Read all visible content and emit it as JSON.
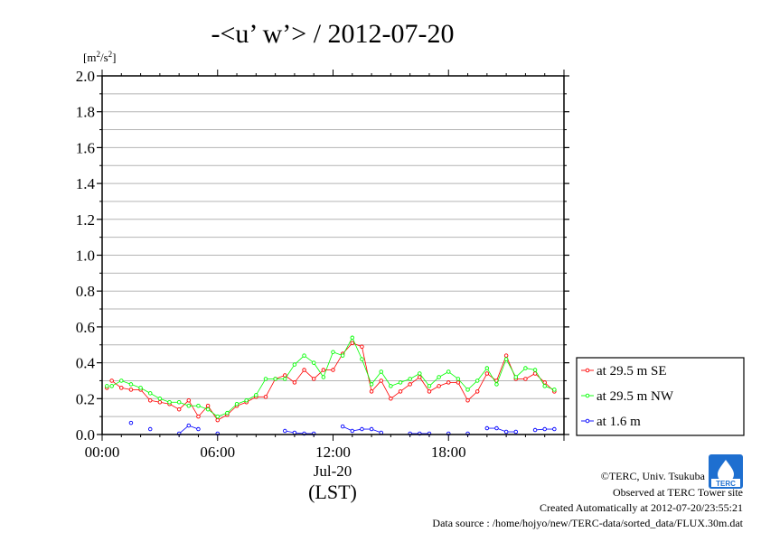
{
  "chart_data": {
    "type": "line",
    "title": "-<u’ w’> / 2012-07-20",
    "unit_base": "[m",
    "unit_sup1": "2",
    "unit_mid": "/s",
    "unit_sup2": "2",
    "unit_end": "]",
    "xlabel_date": "Jul-20",
    "xlabel_tz": "(LST)",
    "xlim": [
      0,
      24
    ],
    "ylim": [
      0,
      2.0
    ],
    "x_ticks": [
      {
        "x": 0,
        "label": "00:00"
      },
      {
        "x": 6,
        "label": "06:00"
      },
      {
        "x": 12,
        "label": "12:00"
      },
      {
        "x": 18,
        "label": "18:00"
      }
    ],
    "y_ticks": [
      {
        "y": 0.0,
        "label": "0.0"
      },
      {
        "y": 0.2,
        "label": "0.2"
      },
      {
        "y": 0.4,
        "label": "0.4"
      },
      {
        "y": 0.6,
        "label": "0.6"
      },
      {
        "y": 0.8,
        "label": "0.8"
      },
      {
        "y": 1.0,
        "label": "1.0"
      },
      {
        "y": 1.2,
        "label": "1.2"
      },
      {
        "y": 1.4,
        "label": "1.4"
      },
      {
        "y": 1.6,
        "label": "1.6"
      },
      {
        "y": 1.8,
        "label": "1.8"
      },
      {
        "y": 2.0,
        "label": "2.0"
      }
    ],
    "grid": true,
    "legend_position": "right",
    "series": [
      {
        "name": "at 29.5 m SE",
        "color": "#ff0000",
        "connected": true,
        "points": [
          [
            0.25,
            0.26
          ],
          [
            0.5,
            0.3
          ],
          [
            1.0,
            0.26
          ],
          [
            1.5,
            0.25
          ],
          [
            2.0,
            0.25
          ],
          [
            2.5,
            0.19
          ],
          [
            3.0,
            0.18
          ],
          [
            3.5,
            0.17
          ],
          [
            4.0,
            0.14
          ],
          [
            4.5,
            0.19
          ],
          [
            5.0,
            0.1
          ],
          [
            5.5,
            0.16
          ],
          [
            6.0,
            0.08
          ],
          [
            6.5,
            0.11
          ],
          [
            7.0,
            0.16
          ],
          [
            7.5,
            0.18
          ],
          [
            8.0,
            0.21
          ],
          [
            8.5,
            0.21
          ],
          [
            9.0,
            0.31
          ],
          [
            9.5,
            0.33
          ],
          [
            10.0,
            0.29
          ],
          [
            10.5,
            0.36
          ],
          [
            11.0,
            0.31
          ],
          [
            11.5,
            0.36
          ],
          [
            12.0,
            0.36
          ],
          [
            12.5,
            0.45
          ],
          [
            13.0,
            0.51
          ],
          [
            13.5,
            0.49
          ],
          [
            14.0,
            0.24
          ],
          [
            14.5,
            0.3
          ],
          [
            15.0,
            0.2
          ],
          [
            15.5,
            0.24
          ],
          [
            16.0,
            0.28
          ],
          [
            16.5,
            0.32
          ],
          [
            17.0,
            0.24
          ],
          [
            17.5,
            0.27
          ],
          [
            18.0,
            0.29
          ],
          [
            18.5,
            0.29
          ],
          [
            19.0,
            0.19
          ],
          [
            19.5,
            0.24
          ],
          [
            20.0,
            0.34
          ],
          [
            20.5,
            0.3
          ],
          [
            21.0,
            0.44
          ],
          [
            21.5,
            0.31
          ],
          [
            22.0,
            0.31
          ],
          [
            22.5,
            0.34
          ],
          [
            23.0,
            0.29
          ],
          [
            23.5,
            0.24
          ]
        ]
      },
      {
        "name": "at 29.5 m NW",
        "color": "#00ff00",
        "connected": true,
        "points": [
          [
            0.25,
            0.27
          ],
          [
            0.5,
            0.27
          ],
          [
            1.0,
            0.3
          ],
          [
            1.5,
            0.28
          ],
          [
            2.0,
            0.26
          ],
          [
            2.5,
            0.23
          ],
          [
            3.0,
            0.2
          ],
          [
            3.5,
            0.18
          ],
          [
            4.0,
            0.18
          ],
          [
            4.5,
            0.16
          ],
          [
            5.0,
            0.16
          ],
          [
            5.5,
            0.14
          ],
          [
            6.0,
            0.1
          ],
          [
            6.5,
            0.12
          ],
          [
            7.0,
            0.17
          ],
          [
            7.5,
            0.19
          ],
          [
            8.0,
            0.22
          ],
          [
            8.5,
            0.31
          ],
          [
            9.0,
            0.31
          ],
          [
            9.5,
            0.31
          ],
          [
            10.0,
            0.39
          ],
          [
            10.5,
            0.44
          ],
          [
            11.0,
            0.4
          ],
          [
            11.5,
            0.32
          ],
          [
            12.0,
            0.46
          ],
          [
            12.5,
            0.44
          ],
          [
            13.0,
            0.54
          ],
          [
            13.5,
            0.42
          ],
          [
            14.0,
            0.28
          ],
          [
            14.5,
            0.35
          ],
          [
            15.0,
            0.27
          ],
          [
            15.5,
            0.29
          ],
          [
            16.0,
            0.31
          ],
          [
            16.5,
            0.34
          ],
          [
            17.0,
            0.27
          ],
          [
            17.5,
            0.32
          ],
          [
            18.0,
            0.35
          ],
          [
            18.5,
            0.31
          ],
          [
            19.0,
            0.25
          ],
          [
            19.5,
            0.3
          ],
          [
            20.0,
            0.37
          ],
          [
            20.5,
            0.28
          ],
          [
            21.0,
            0.42
          ],
          [
            21.5,
            0.32
          ],
          [
            22.0,
            0.37
          ],
          [
            22.5,
            0.36
          ],
          [
            23.0,
            0.27
          ],
          [
            23.5,
            0.25
          ]
        ]
      },
      {
        "name": "at 1.6 m",
        "color": "#0000ff",
        "connected": true,
        "points": [
          [
            1.5,
            0.065
          ],
          [
            2.5,
            0.03
          ],
          [
            4.0,
            0.005
          ],
          [
            4.5,
            0.05
          ],
          [
            5.0,
            0.03
          ],
          [
            6.0,
            0.005
          ],
          [
            9.5,
            0.02
          ],
          [
            10.0,
            0.01
          ],
          [
            10.5,
            0.005
          ],
          [
            11.0,
            0.005
          ],
          [
            12.5,
            0.045
          ],
          [
            13.0,
            0.02
          ],
          [
            13.5,
            0.03
          ],
          [
            14.0,
            0.03
          ],
          [
            14.5,
            0.01
          ],
          [
            16.0,
            0.005
          ],
          [
            16.5,
            0.005
          ],
          [
            17.0,
            0.005
          ],
          [
            18.0,
            0.005
          ],
          [
            19.0,
            0.005
          ],
          [
            20.0,
            0.035
          ],
          [
            20.5,
            0.035
          ],
          [
            21.0,
            0.015
          ],
          [
            21.5,
            0.015
          ],
          [
            22.5,
            0.025
          ],
          [
            23.0,
            0.03
          ],
          [
            23.5,
            0.03
          ]
        ]
      }
    ]
  },
  "logo": {
    "text": "TERC",
    "color": "#1e6fd0"
  },
  "credits": {
    "line1": "©TERC, Univ. Tsukuba",
    "line2": "Observed at TERC Tower site",
    "line3": "Created Automatically at 2012-07-20/23:55:21",
    "line4": "Data source : /home/hojyo/new/TERC-data/sorted_data/FLUX.30m.dat"
  }
}
